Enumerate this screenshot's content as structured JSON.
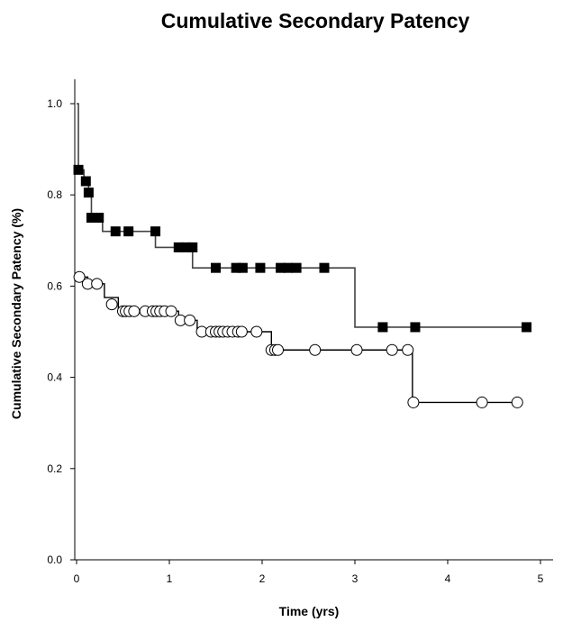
{
  "chart_data": {
    "type": "line",
    "title": "Cumulative Secondary Patency",
    "xlabel": "Time (yrs)",
    "ylabel": "Cumulative Secondary Patency (%)",
    "xlim": [
      0,
      5.2
    ],
    "ylim": [
      0,
      1.05
    ],
    "x_ticks": [
      "0",
      "1",
      "2",
      "3",
      "4",
      "5"
    ],
    "y_ticks": [
      "0.0",
      "0.2",
      "0.4",
      "0.6",
      "0.8",
      "1.0"
    ],
    "grid": false,
    "legend": "none",
    "series": [
      {
        "marker": "filled-square",
        "color": "#000000",
        "line_color": "#444444",
        "step_x": [
          0,
          0.02,
          0.08,
          0.13,
          0.16,
          0.28,
          0.45,
          0.85,
          0.92,
          1.25,
          1.4,
          3.0,
          4.9
        ],
        "step_y": [
          1.0,
          0.855,
          0.83,
          0.805,
          0.75,
          0.72,
          0.72,
          0.685,
          0.685,
          0.64,
          0.64,
          0.51,
          0.51
        ],
        "censored_x": [
          0.02,
          0.1,
          0.13,
          0.16,
          0.24,
          0.42,
          0.56,
          0.85,
          1.1,
          1.18,
          1.25,
          1.5,
          1.72,
          1.79,
          1.98,
          2.2,
          2.28,
          2.37,
          2.67,
          3.3,
          3.65,
          4.85
        ],
        "censored_y": [
          0.855,
          0.83,
          0.805,
          0.75,
          0.75,
          0.72,
          0.72,
          0.72,
          0.685,
          0.685,
          0.685,
          0.64,
          0.64,
          0.64,
          0.64,
          0.64,
          0.64,
          0.64,
          0.64,
          0.51,
          0.51,
          0.51
        ]
      },
      {
        "marker": "open-circle",
        "color": "#000000",
        "line_color": "#000000",
        "step_x": [
          0,
          0.02,
          0.12,
          0.3,
          0.45,
          1.1,
          1.3,
          2.1,
          2.13,
          3.57,
          3.62,
          4.75
        ],
        "step_y": [
          0.62,
          0.62,
          0.605,
          0.575,
          0.545,
          0.525,
          0.5,
          0.46,
          0.46,
          0.46,
          0.345,
          0.345
        ],
        "censored_x": [
          0.03,
          0.12,
          0.22,
          0.38,
          0.5,
          0.53,
          0.57,
          0.62,
          0.74,
          0.82,
          0.86,
          0.9,
          0.95,
          1.02,
          1.12,
          1.22,
          1.35,
          1.45,
          1.5,
          1.54,
          1.58,
          1.63,
          1.68,
          1.74,
          1.78,
          1.94,
          2.1,
          2.14,
          2.17,
          2.57,
          3.02,
          3.4,
          3.57,
          3.63,
          4.37,
          4.75
        ],
        "censored_y": [
          0.62,
          0.605,
          0.605,
          0.56,
          0.545,
          0.545,
          0.545,
          0.545,
          0.545,
          0.545,
          0.545,
          0.545,
          0.545,
          0.545,
          0.525,
          0.525,
          0.5,
          0.5,
          0.5,
          0.5,
          0.5,
          0.5,
          0.5,
          0.5,
          0.5,
          0.5,
          0.46,
          0.46,
          0.46,
          0.46,
          0.46,
          0.46,
          0.46,
          0.345,
          0.345,
          0.345
        ]
      }
    ]
  }
}
